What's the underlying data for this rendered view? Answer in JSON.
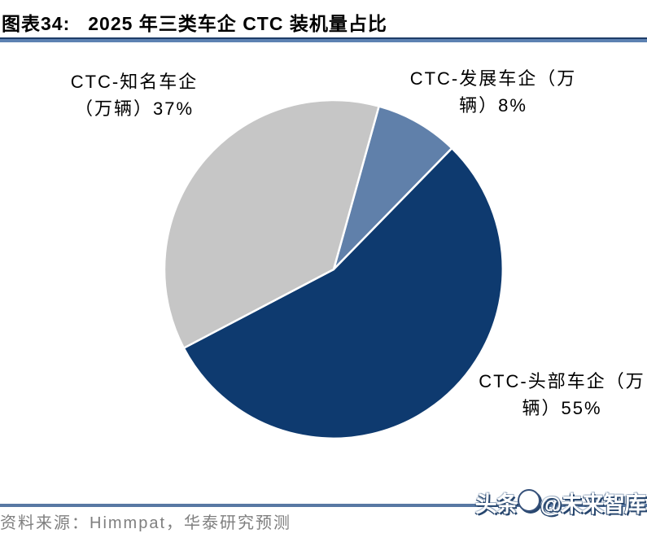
{
  "header": {
    "figure_label": "图表34:",
    "title": "2025 年三类车企 CTC 装机量占比"
  },
  "chart_data": {
    "type": "pie",
    "title": "2025 年三类车企 CTC 装机量占比",
    "direction": "clockwise",
    "start_angle_deg": 15.5,
    "legend_position": "outside-data-labels",
    "slices": [
      {
        "id": "developing",
        "label": "CTC-发展车企（万辆）",
        "value": 8,
        "color": "#6080AA"
      },
      {
        "id": "leading",
        "label": "CTC-头部车企（万辆）",
        "value": 55,
        "color": "#0E3A6F"
      },
      {
        "id": "known",
        "label": "CTC-知名车企（万辆）",
        "value": 37,
        "color": "#C6C6C6"
      }
    ]
  },
  "data_labels": {
    "known": {
      "line1": "CTC-知名车企",
      "line2": "（万辆）37%"
    },
    "developing": {
      "line1": "CTC-发展车企（万",
      "line2": "辆）8%"
    },
    "leading": {
      "line1": "CTC-头部车企（万",
      "line2": "辆）55%"
    }
  },
  "footer": {
    "source": "资料来源：Himmpat，华泰研究预测"
  },
  "watermark": {
    "left": "头条",
    "right": "@未来智库"
  },
  "colors": {
    "slice_developing": "#6080AA",
    "slice_leading": "#0E3A6F",
    "slice_known": "#C6C6C6",
    "title_rule_top": "#1E3D68",
    "title_rule": "#5D82B2",
    "footer_rule": "#5878A3",
    "source_text": "#7F7F7F",
    "watermark_outline": "#27466E",
    "separator": "#FFFFFF"
  }
}
